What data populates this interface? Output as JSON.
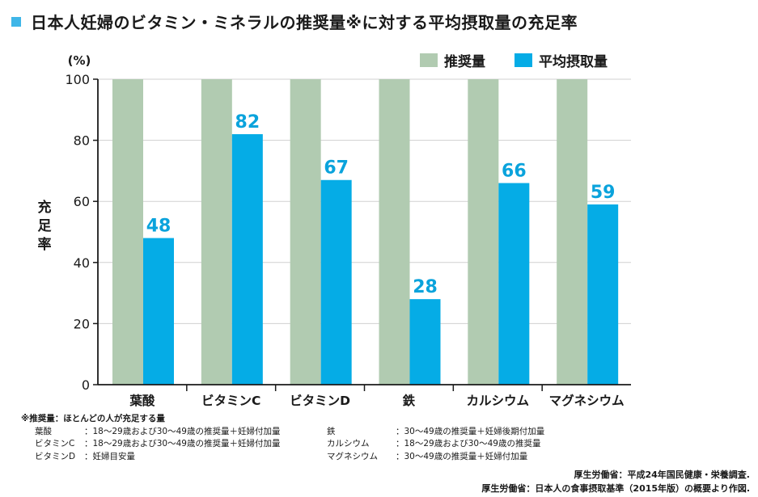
{
  "title": "日本人妊婦のビタミン・ミネラルの推奨量※に対する平均摂取量の充足率",
  "colors": {
    "recommended": "#b1cbb1",
    "average": "#05ace6",
    "value_label": "#0aa3dc",
    "title_square": "#3fb6e8"
  },
  "chart_data": {
    "type": "bar",
    "categories": [
      "葉酸",
      "ビタミンC",
      "ビタミンD",
      "鉄",
      "カルシウム",
      "マグネシウム"
    ],
    "series": [
      {
        "name": "推奨量",
        "values": [
          100,
          100,
          100,
          100,
          100,
          100
        ]
      },
      {
        "name": "平均摂取量",
        "values": [
          48,
          82,
          67,
          28,
          66,
          59
        ]
      }
    ],
    "value_labels": [
      "48",
      "82",
      "67",
      "28",
      "66",
      "59"
    ],
    "ylabel": "充足率",
    "y_unit": "(%)",
    "ylim": [
      0,
      100
    ],
    "yticks": [
      0,
      20,
      40,
      60,
      80,
      100
    ],
    "grid": true,
    "legend_position": "top-right"
  },
  "notes": {
    "heading": "※推奨量：ほとんどの人が充足する量",
    "rows": [
      {
        "left_label": "葉酸",
        "left_desc": "：18～29歳および30～49歳の推奨量＋妊婦付加量",
        "right_label": "鉄",
        "right_desc": "：30～49歳の推奨量＋妊婦後期付加量"
      },
      {
        "left_label": "ビタミンC",
        "left_desc": "：18～29歳および30～49歳の推奨量＋妊婦付加量",
        "right_label": "カルシウム",
        "right_desc": "：18～29歳および30～49歳の推奨量"
      },
      {
        "left_label": "ビタミンD",
        "left_desc": "：妊婦目安量",
        "right_label": "マグネシウム",
        "right_desc": "：30～49歳の推奨量＋妊婦付加量"
      }
    ]
  },
  "sources": [
    "厚生労働省：平成24年国民健康・栄養調査.",
    "厚生労働省：日本人の食事摂取基準（2015年版）の概要より作図."
  ]
}
